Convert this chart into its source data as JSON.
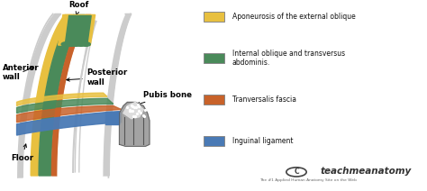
{
  "bg_color": "#ffffff",
  "yellow": "#e8c040",
  "green": "#4a8a5a",
  "orange": "#c8622a",
  "blue": "#4a7ab5",
  "light_gray": "#cccccc",
  "mid_gray": "#999999",
  "dark_gray": "#555555",
  "legend_items": [
    {
      "label": "Aponeurosis of the external oblique",
      "color": "#e8c040"
    },
    {
      "label": "Internal oblique and transversus\nabdominis.",
      "color": "#4a8a5a"
    },
    {
      "label": "Tranversalis fascia",
      "color": "#c8622a"
    },
    {
      "label": "Inguinal ligament",
      "color": "#4a7ab5"
    }
  ],
  "watermark": "teachmeanatomy",
  "watermark_sub": "The #1 Applied Human Anatomy Site on the Web"
}
